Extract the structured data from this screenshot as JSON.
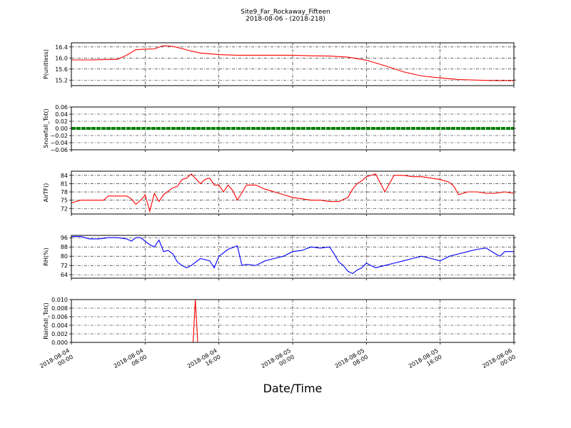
{
  "figure": {
    "title_line1": "Site9_Far_Rockaway_Fifteen",
    "title_line2": "2018-08-06 - (2018-218)",
    "xlabel": "Date/Time",
    "colors": {
      "axis": "#000000",
      "grid": "#000000",
      "background": "#ffffff"
    }
  },
  "chart_data": [
    {
      "type": "line",
      "ylabel": "P(unitless)",
      "color": "#ff0000",
      "ylim": [
        15.0,
        16.55
      ],
      "yticks": [
        15.2,
        15.6,
        16.0,
        16.4
      ],
      "ytick_labels": [
        "15.2",
        "15.6",
        "16.0",
        "16.4"
      ],
      "grid": true,
      "x_hours": [
        0,
        2,
        5,
        6,
        7,
        8,
        9,
        10,
        11,
        12,
        13,
        14,
        16,
        18,
        20,
        22,
        24,
        26,
        28,
        30,
        32,
        34,
        36,
        38,
        40,
        42,
        44,
        46,
        48
      ],
      "values": [
        15.93,
        15.93,
        15.95,
        16.1,
        16.3,
        16.32,
        16.33,
        16.45,
        16.42,
        16.34,
        16.25,
        16.18,
        16.12,
        16.1,
        16.1,
        16.1,
        16.1,
        16.08,
        16.07,
        16.03,
        15.92,
        15.72,
        15.5,
        15.35,
        15.28,
        15.22,
        15.2,
        15.18,
        15.18
      ]
    },
    {
      "type": "line",
      "ylabel": "Snowfall_Tot()",
      "color": "#008000",
      "ylim": [
        -0.06,
        0.06
      ],
      "yticks": [
        -0.06,
        -0.04,
        -0.02,
        0.0,
        0.02,
        0.04,
        0.06
      ],
      "ytick_labels": [
        "−0.06",
        "−0.04",
        "−0.02",
        "0.00",
        "0.02",
        "0.04",
        "0.06"
      ],
      "grid": true,
      "x_hours": [
        0,
        48
      ],
      "values": [
        0.0,
        0.0
      ]
    },
    {
      "type": "line",
      "ylabel": "AirTF()",
      "color": "#ff0000",
      "ylim": [
        70,
        85.5
      ],
      "yticks": [
        72,
        75,
        78,
        81,
        84
      ],
      "ytick_labels": [
        "72",
        "75",
        "78",
        "81",
        "84"
      ],
      "grid": true,
      "x_hours": [
        0,
        1,
        2,
        3,
        3.5,
        4,
        5,
        6,
        6.5,
        7,
        7.5,
        7.8,
        8,
        8.5,
        9,
        9.5,
        10,
        11,
        11.5,
        12,
        12.5,
        13,
        14,
        14.5,
        15,
        15.5,
        16,
        16.5,
        17,
        17.5,
        18,
        19,
        20,
        21,
        22,
        23,
        24,
        25,
        26,
        27,
        28,
        29,
        30,
        30.5,
        31,
        31.5,
        32,
        33,
        34,
        35,
        36,
        37,
        38,
        39,
        40,
        41,
        41.5,
        42,
        43,
        44,
        45,
        46,
        47,
        48
      ],
      "values": [
        74,
        75,
        75,
        75,
        75,
        76.5,
        76.5,
        76.5,
        75.5,
        73.5,
        75,
        76,
        77,
        71,
        77.5,
        74.5,
        77,
        79.5,
        80,
        82.5,
        83,
        84.5,
        81,
        82.5,
        83,
        80.5,
        80.5,
        78,
        80.5,
        78.5,
        75,
        80.5,
        80.5,
        79,
        78,
        77,
        76,
        75.5,
        75,
        75,
        74.5,
        74.5,
        76,
        79,
        81,
        82,
        83.5,
        84.5,
        78,
        84,
        84,
        83.5,
        83.5,
        83,
        82.5,
        81.5,
        80,
        77,
        78,
        78,
        77.5,
        77.5,
        78,
        77.5
      ]
    },
    {
      "type": "line",
      "ylabel": "RH(%)",
      "color": "#0000ff",
      "ylim": [
        61,
        98
      ],
      "yticks": [
        64,
        72,
        80,
        88,
        96
      ],
      "ytick_labels": [
        "64",
        "72",
        "80",
        "88",
        "96"
      ],
      "grid": true,
      "x_hours": [
        0,
        1,
        2,
        3,
        4,
        5,
        6,
        6.5,
        7,
        7.5,
        8,
        8.5,
        9,
        9.5,
        10,
        10.5,
        11,
        11.5,
        12,
        12.5,
        13,
        14,
        15,
        15.5,
        16,
        17,
        18,
        18.5,
        19,
        20,
        21,
        22,
        23,
        24,
        25,
        26,
        27,
        28,
        28.5,
        29,
        29.5,
        30,
        30.5,
        31,
        31.5,
        32,
        32.5,
        33,
        34,
        35,
        36,
        37,
        38,
        39,
        40,
        41,
        42,
        43,
        44,
        45,
        46,
        46.5,
        47,
        48
      ],
      "values": [
        97,
        97,
        95,
        95,
        96,
        96,
        95,
        93,
        96,
        96,
        93,
        90,
        88,
        94,
        84,
        85,
        82,
        75,
        72,
        70,
        72,
        78,
        76,
        70,
        80,
        86,
        89,
        72,
        73,
        72,
        76,
        78,
        80,
        84,
        85,
        88,
        87,
        88,
        82,
        75,
        72,
        67,
        65,
        68,
        70,
        74,
        72,
        70,
        72,
        74,
        76,
        78,
        80,
        78,
        76,
        80,
        82,
        84,
        86,
        87,
        82,
        80,
        84,
        84
      ]
    },
    {
      "type": "line",
      "ylabel": "Rainfall_Tot()",
      "color": "#ff0000",
      "ylim": [
        0.0,
        0.01
      ],
      "yticks": [
        0.0,
        0.002,
        0.004,
        0.006,
        0.008,
        0.01
      ],
      "ytick_labels": [
        "0.000",
        "0.002",
        "0.004",
        "0.006",
        "0.008",
        "0.010"
      ],
      "grid": true,
      "x_hours": [
        0,
        13.2,
        13.45,
        13.7,
        48
      ],
      "values": [
        0.0,
        0.0,
        0.01,
        0.0,
        0.0
      ]
    }
  ],
  "x_axis": {
    "type": "datetime",
    "start": "2018-08-04 00:00",
    "end": "2018-08-06 00:00",
    "tick_labels": [
      [
        "2018-08-04",
        "00:00"
      ],
      [
        "2018-08-04",
        "08:00"
      ],
      [
        "2018-08-04",
        "16:00"
      ],
      [
        "2018-08-05",
        "00:00"
      ],
      [
        "2018-08-05",
        "08:00"
      ],
      [
        "2018-08-05",
        "16:00"
      ],
      [
        "2018-08-06",
        "00:00"
      ]
    ]
  }
}
